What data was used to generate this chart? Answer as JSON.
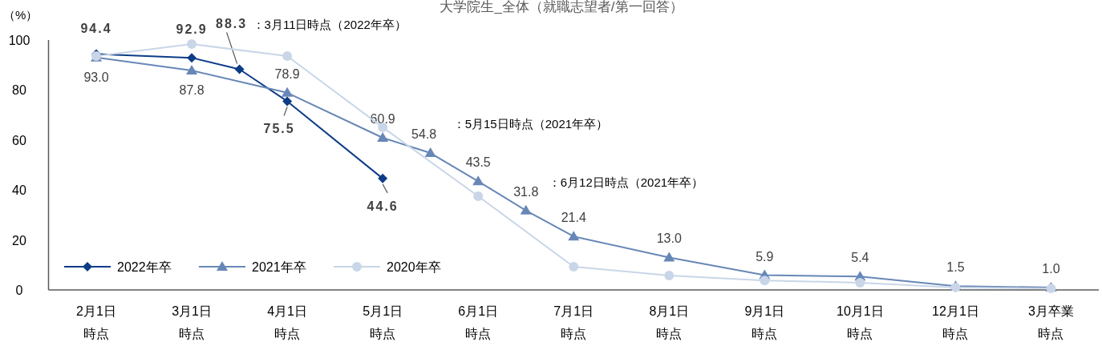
{
  "chart_data": {
    "type": "line",
    "title": "大学院生_全体（就職志望者/第一回答）",
    "ylabel": "（%）",
    "categories": [
      "2月1日時点",
      null,
      "3月1日時点",
      null,
      "4月1日時点",
      null,
      "5月1日時点",
      null,
      "6月1日時点",
      null,
      "7月1日時点",
      null,
      "8月1日時点",
      null,
      "9月1日時点",
      null,
      "10月1日時点",
      null,
      "12月1日時点",
      null,
      "3月卒業時点"
    ],
    "ylim": [
      0,
      100
    ],
    "yticks": [
      0,
      20,
      40,
      60,
      80,
      100
    ],
    "legend": "bottom left",
    "series": [
      {
        "name": "2022年卒",
        "color": "#0d3c87",
        "marker": "diamond",
        "values": [
          94.4,
          null,
          92.9,
          88.3,
          75.5,
          null,
          44.6,
          null,
          null,
          null,
          null,
          null,
          null,
          null,
          null,
          null,
          null,
          null,
          null,
          null,
          null
        ],
        "value_labels": [
          "94.4",
          null,
          "92.9",
          "88.3",
          "75.5",
          null,
          "44.6",
          null,
          null,
          null,
          null,
          null,
          null,
          null,
          null,
          null,
          null,
          null,
          null,
          null,
          null
        ]
      },
      {
        "name": "2021年卒",
        "color": "#6787b7",
        "marker": "triangle",
        "values": [
          93.0,
          null,
          87.8,
          null,
          78.9,
          null,
          60.9,
          54.8,
          43.5,
          31.8,
          21.4,
          null,
          13.0,
          null,
          5.9,
          null,
          5.4,
          null,
          1.5,
          null,
          1.0
        ],
        "value_labels": [
          "93.0",
          null,
          "87.8",
          null,
          "78.9",
          null,
          "60.9",
          "54.8",
          "43.5",
          "31.8",
          "21.4",
          null,
          "13.0",
          null,
          "5.9",
          null,
          "5.4",
          null,
          "1.5",
          null,
          "1.0"
        ]
      },
      {
        "name": "2020年卒",
        "color": "#c9d6e8",
        "marker": "circle",
        "values": [
          93.6,
          null,
          98.4,
          null,
          93.6,
          null,
          65.1,
          null,
          37.5,
          null,
          9.3,
          null,
          5.8,
          null,
          3.8,
          null,
          2.9,
          null,
          1.0,
          null,
          0.6
        ]
      }
    ],
    "annotations": [
      "：3月11日時点（2022年卒）",
      "：5月15日時点（2021年卒）",
      "：6月12日時点（2021年卒）"
    ]
  }
}
